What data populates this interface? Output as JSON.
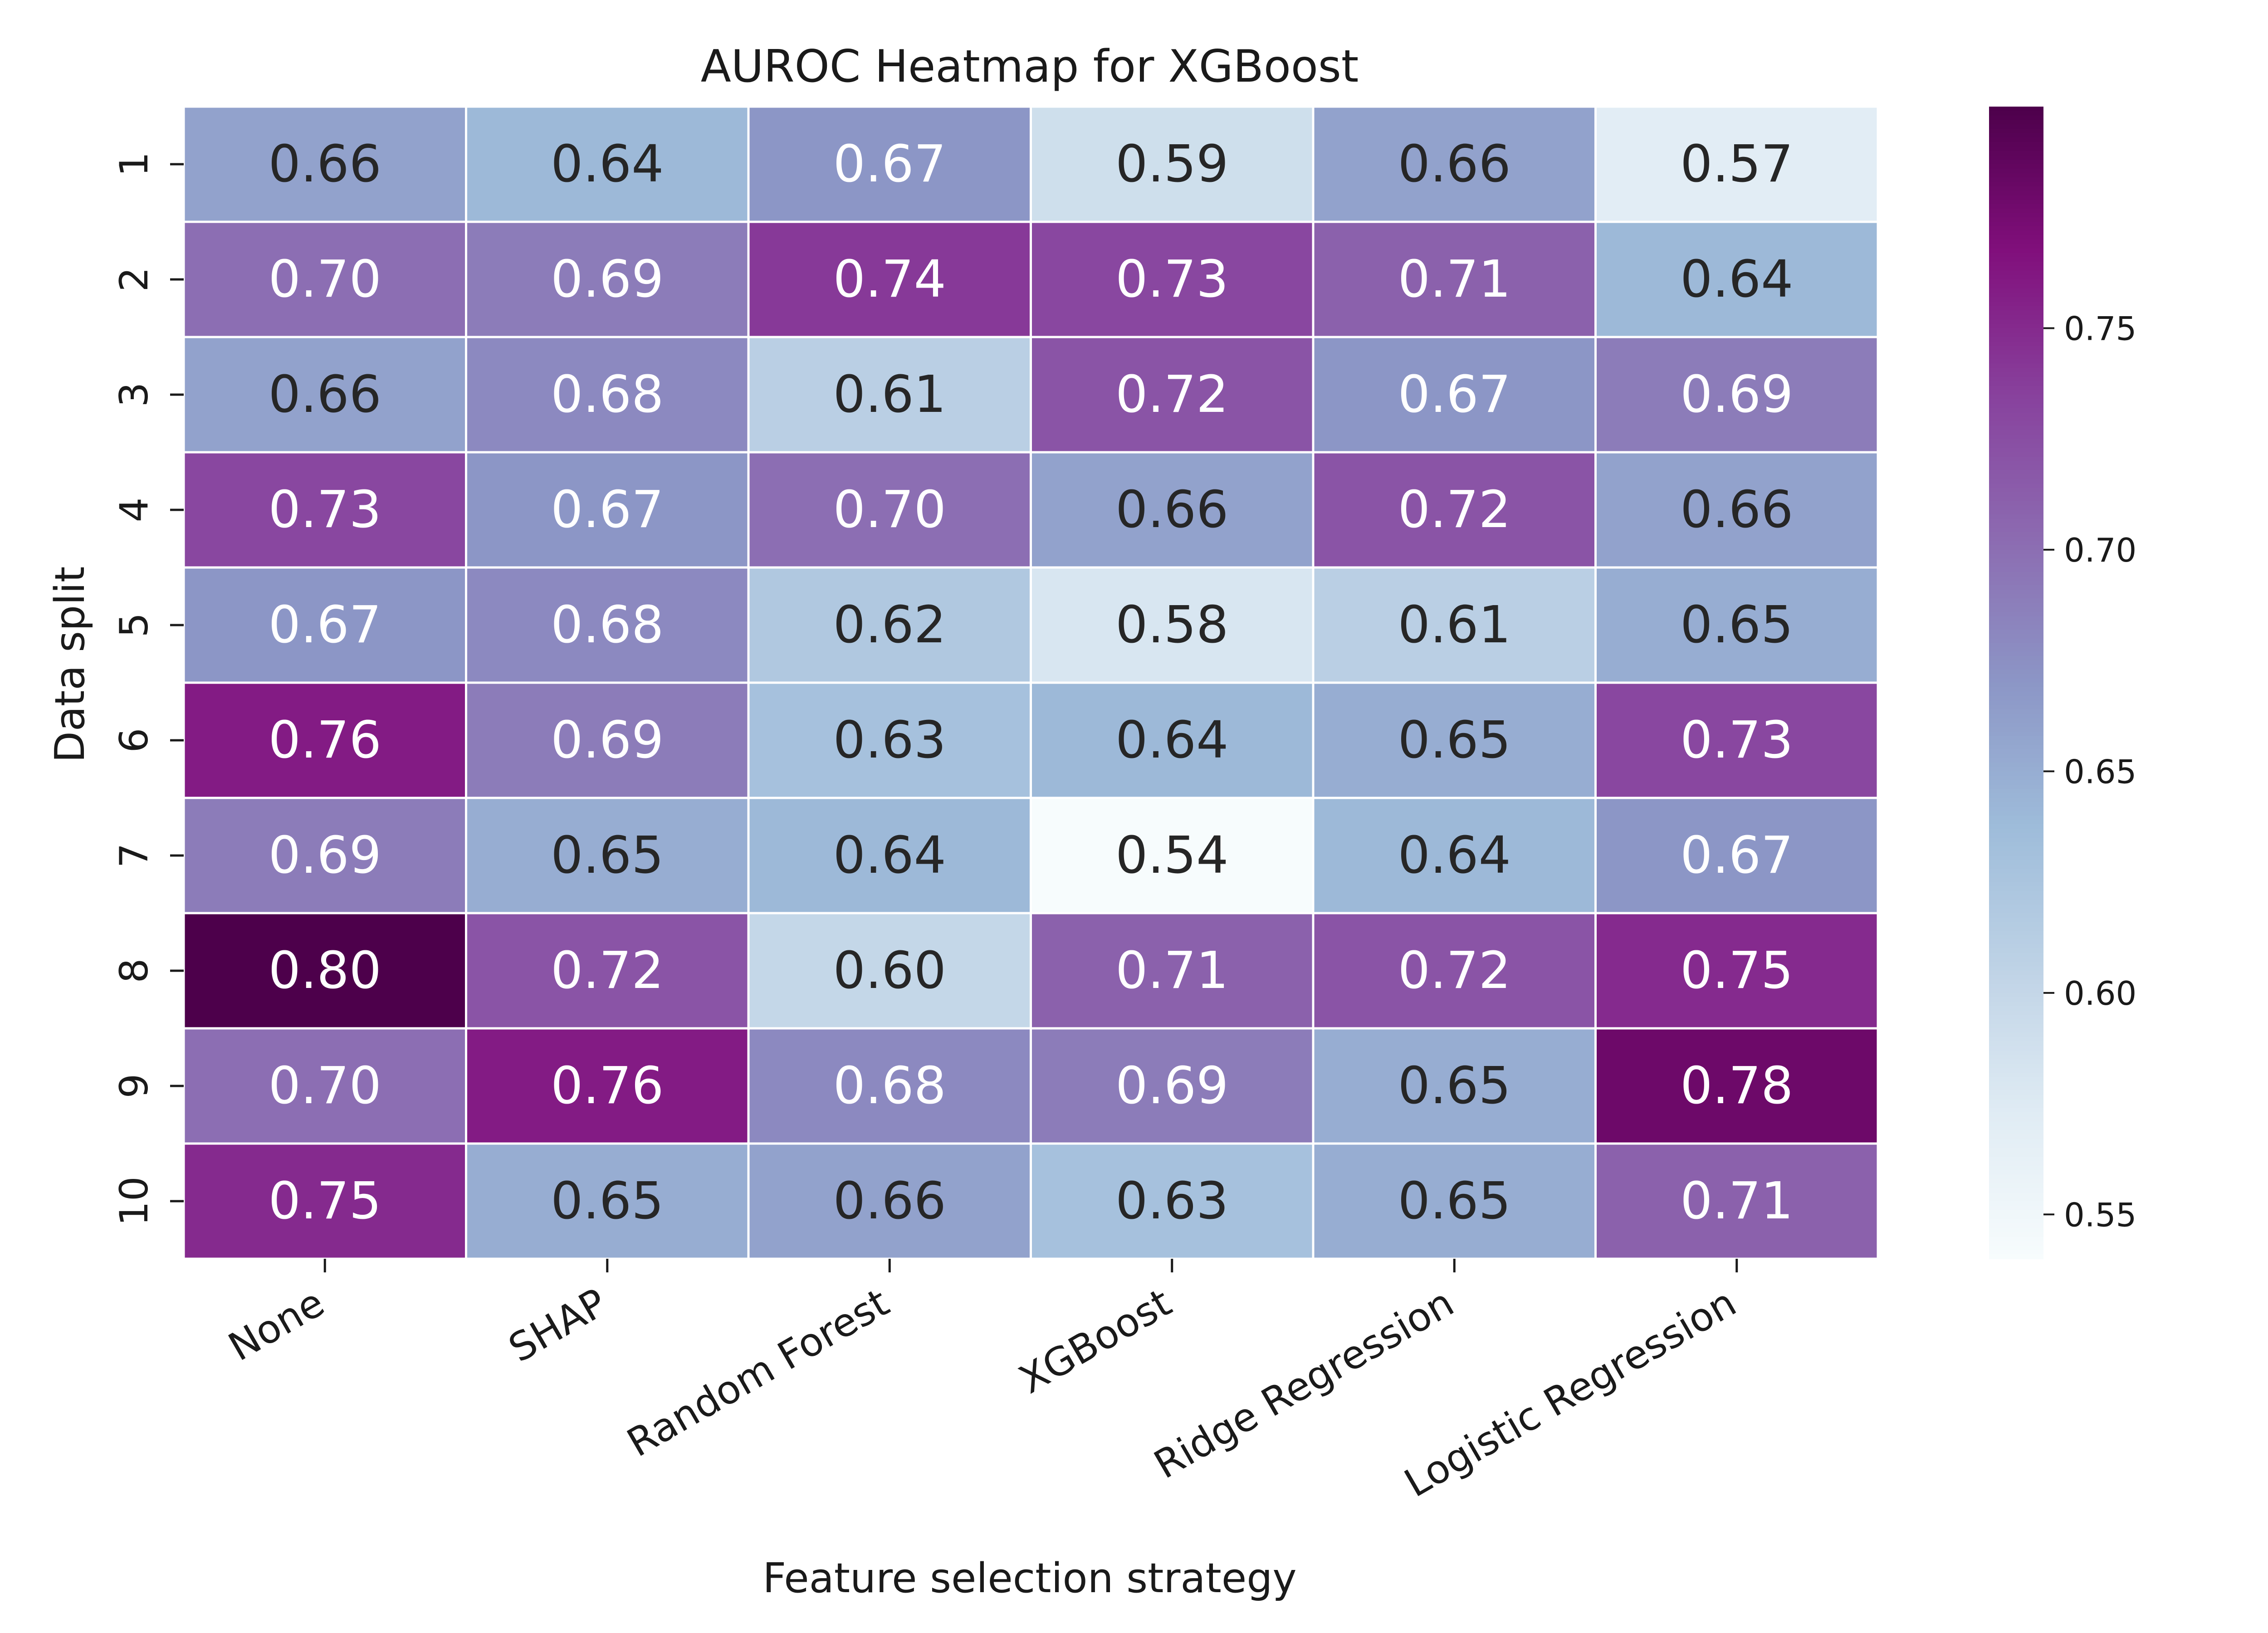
{
  "chart_data": {
    "type": "heatmap",
    "title": "AUROC Heatmap for XGBoost",
    "xlabel": "Feature selection strategy",
    "ylabel": "Data split",
    "x_categories": [
      "None",
      "SHAP",
      "Random Forest",
      "XGBoost",
      "Ridge Regression",
      "Logistic Regression"
    ],
    "y_categories": [
      "1",
      "2",
      "3",
      "4",
      "5",
      "6",
      "7",
      "8",
      "9",
      "10"
    ],
    "values": [
      [
        0.66,
        0.64,
        0.67,
        0.59,
        0.66,
        0.57
      ],
      [
        0.7,
        0.69,
        0.74,
        0.73,
        0.71,
        0.64
      ],
      [
        0.66,
        0.68,
        0.61,
        0.72,
        0.67,
        0.69
      ],
      [
        0.73,
        0.67,
        0.7,
        0.66,
        0.72,
        0.66
      ],
      [
        0.67,
        0.68,
        0.62,
        0.58,
        0.61,
        0.65
      ],
      [
        0.76,
        0.69,
        0.63,
        0.64,
        0.65,
        0.73
      ],
      [
        0.69,
        0.65,
        0.64,
        0.54,
        0.64,
        0.67
      ],
      [
        0.8,
        0.72,
        0.6,
        0.71,
        0.72,
        0.75
      ],
      [
        0.7,
        0.76,
        0.68,
        0.69,
        0.65,
        0.78
      ],
      [
        0.75,
        0.65,
        0.66,
        0.63,
        0.65,
        0.71
      ]
    ],
    "value_labels": [
      [
        "0.66",
        "0.64",
        "0.67",
        "0.59",
        "0.66",
        "0.57"
      ],
      [
        "0.70",
        "0.69",
        "0.74",
        "0.73",
        "0.71",
        "0.64"
      ],
      [
        "0.66",
        "0.68",
        "0.61",
        "0.72",
        "0.67",
        "0.69"
      ],
      [
        "0.73",
        "0.67",
        "0.70",
        "0.66",
        "0.72",
        "0.66"
      ],
      [
        "0.67",
        "0.68",
        "0.62",
        "0.58",
        "0.61",
        "0.65"
      ],
      [
        "0.76",
        "0.69",
        "0.63",
        "0.64",
        "0.65",
        "0.73"
      ],
      [
        "0.69",
        "0.65",
        "0.64",
        "0.54",
        "0.64",
        "0.67"
      ],
      [
        "0.80",
        "0.72",
        "0.60",
        "0.71",
        "0.72",
        "0.75"
      ],
      [
        "0.70",
        "0.76",
        "0.68",
        "0.69",
        "0.65",
        "0.78"
      ],
      [
        "0.75",
        "0.65",
        "0.66",
        "0.63",
        "0.65",
        "0.71"
      ]
    ],
    "colormap": "BuPu",
    "color_range": [
      0.54,
      0.8
    ],
    "colorbar_ticks": [
      0.55,
      0.6,
      0.65,
      0.7,
      0.75
    ],
    "colorbar_tick_labels": [
      "0.55",
      "0.60",
      "0.65",
      "0.70",
      "0.75"
    ],
    "colorbar_stops": [
      "#f7fcfd",
      "#e0ecf4",
      "#bfd3e6",
      "#9ebcda",
      "#8c96c6",
      "#8c6bb1",
      "#88419d",
      "#810f7c",
      "#4d004b"
    ],
    "cell_text_colors": {
      "light": "#ffffff",
      "dark": "#262626"
    },
    "grid": false,
    "legend": "colorbar-right"
  }
}
